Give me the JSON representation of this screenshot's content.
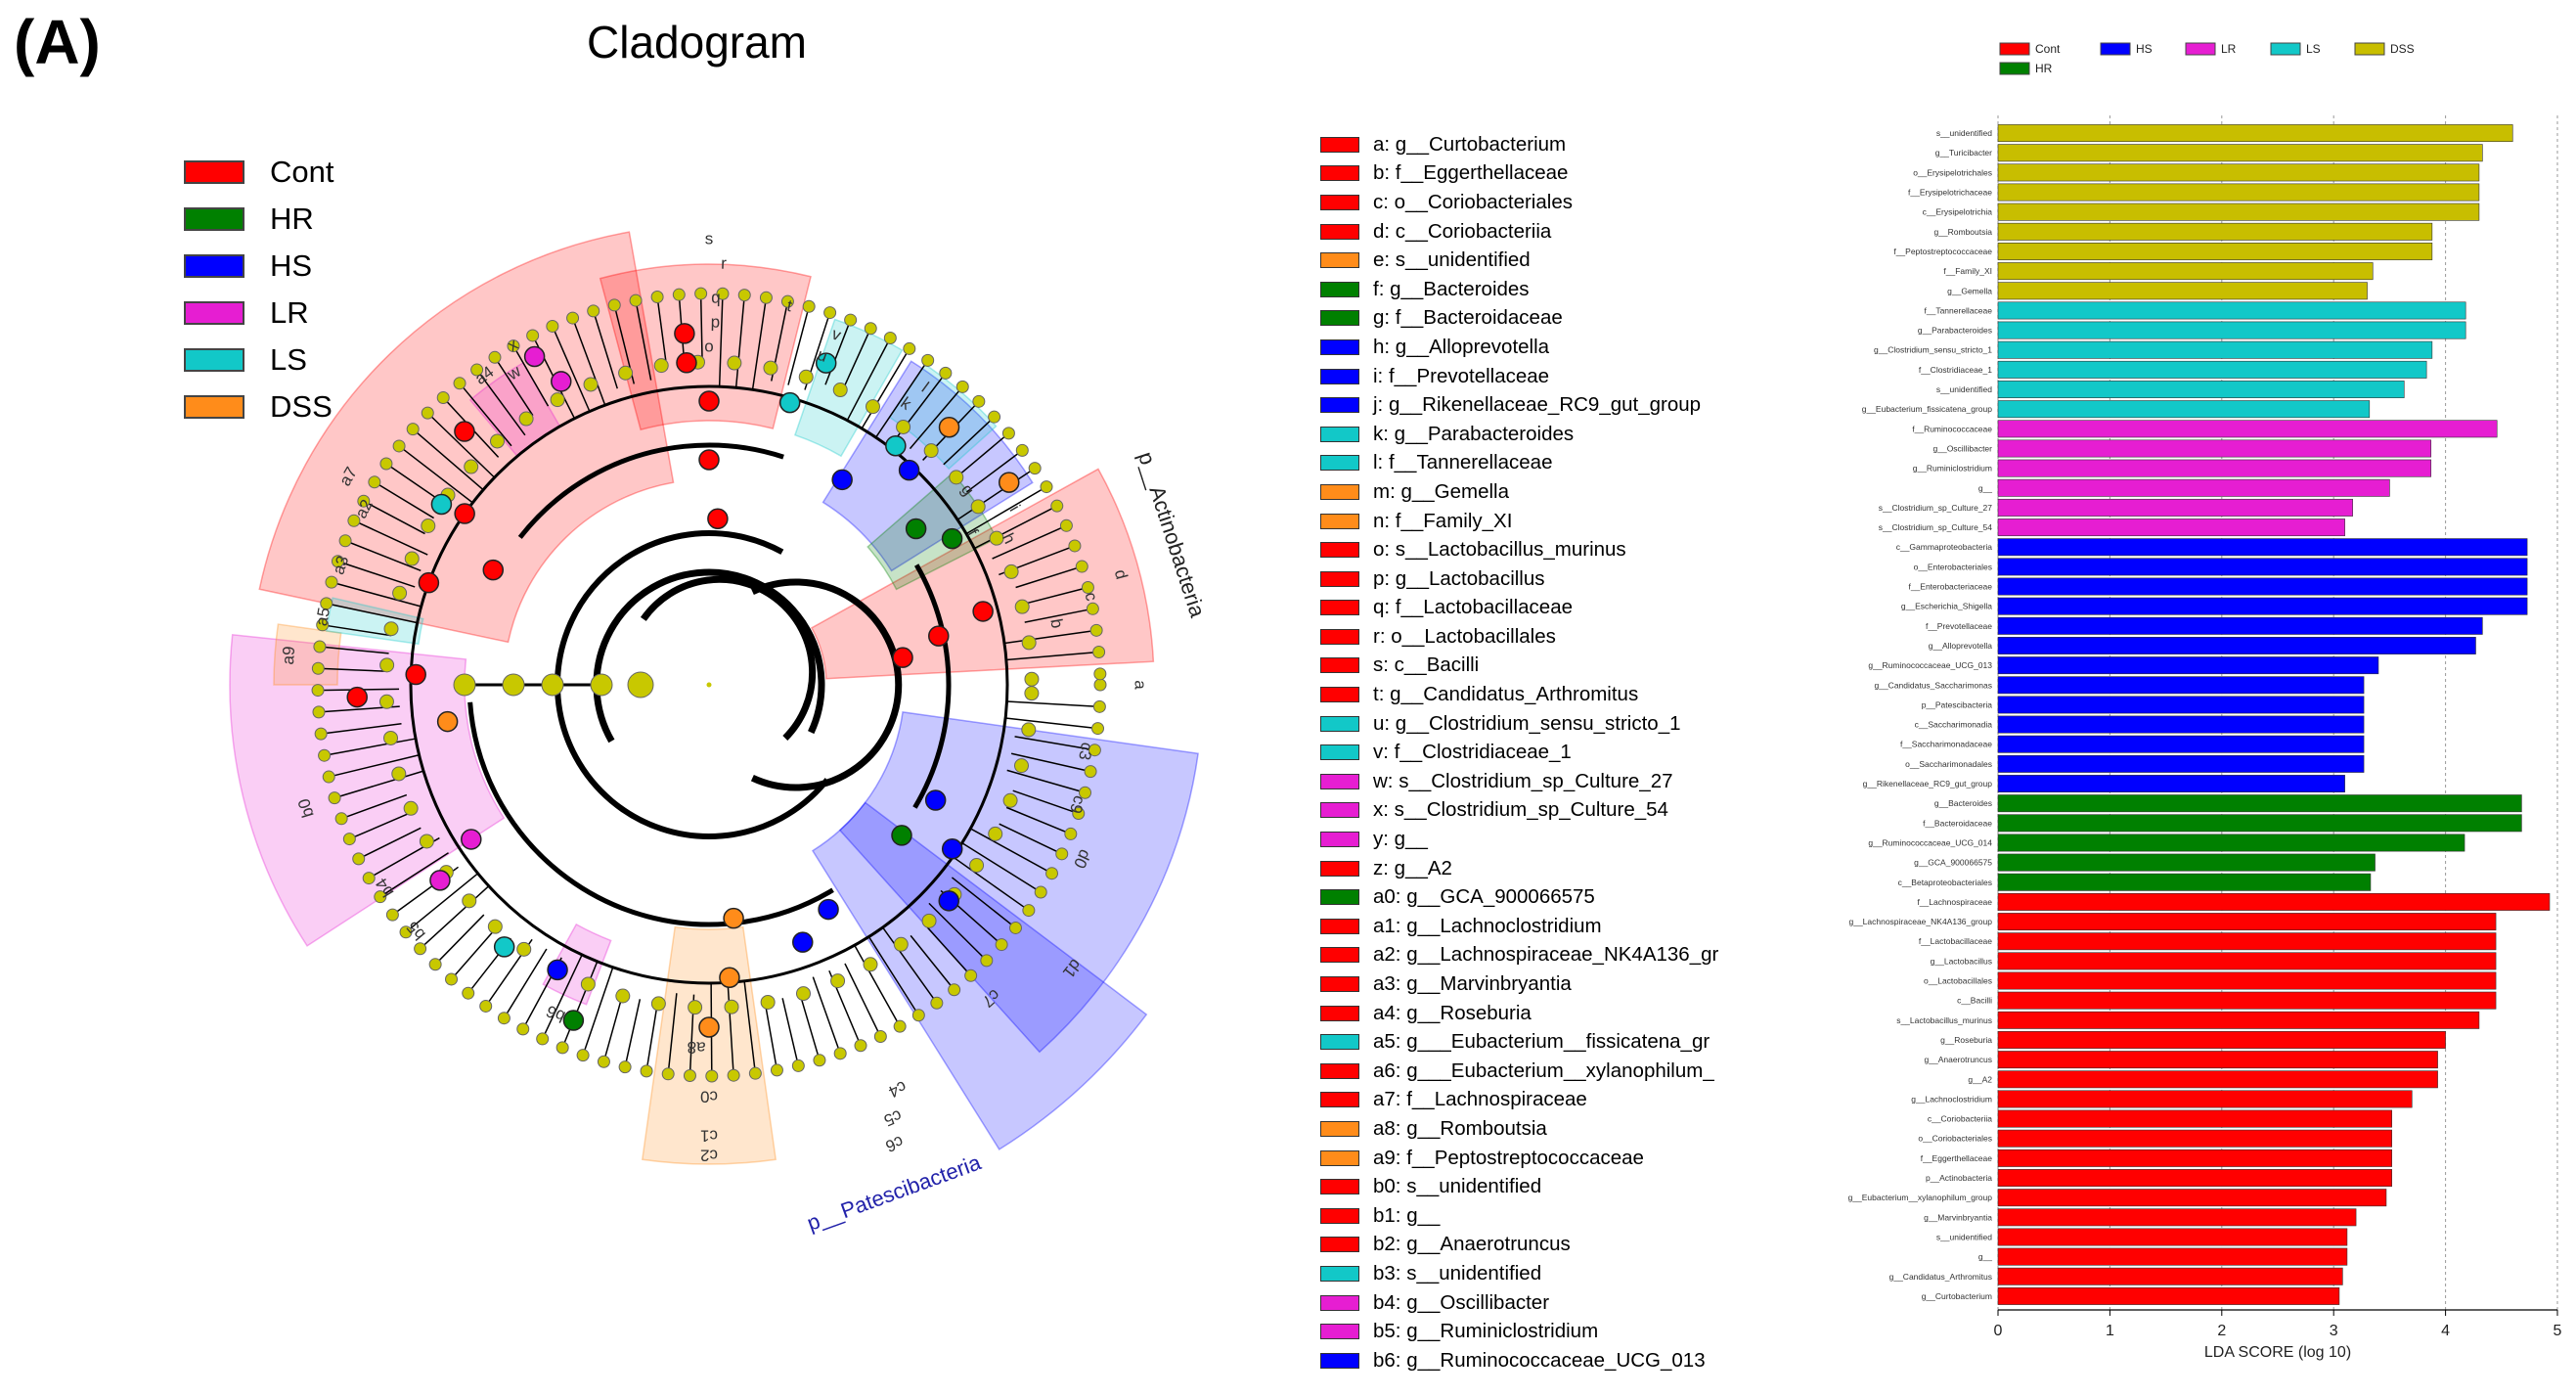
{
  "panel_label": "(A)",
  "cladogram": {
    "title": "Cladogram",
    "group_legend": [
      {
        "label": "Cont",
        "color": "#ff0000"
      },
      {
        "label": "HR",
        "color": "#008000"
      },
      {
        "label": "HS",
        "color": "#0000ff"
      },
      {
        "label": "LR",
        "color": "#e61ed2"
      },
      {
        "label": "LS",
        "color": "#12c8c8"
      },
      {
        "label": "DSS",
        "color": "#ff8c1a"
      }
    ],
    "phylum_labels": [
      "p__Actinobacteria",
      "p__Patescibacteria"
    ],
    "taxa_legend": [
      {
        "code": "a",
        "name": "a: g__Curtobacterium",
        "group": "Cont"
      },
      {
        "code": "b",
        "name": "b: f__Eggerthellaceae",
        "group": "Cont"
      },
      {
        "code": "c",
        "name": "c: o__Coriobacteriales",
        "group": "Cont"
      },
      {
        "code": "d",
        "name": "d: c__Coriobacteriia",
        "group": "Cont"
      },
      {
        "code": "e",
        "name": "e: s__unidentified",
        "group": "DSS"
      },
      {
        "code": "f",
        "name": "f: g__Bacteroides",
        "group": "HR"
      },
      {
        "code": "g",
        "name": "g: f__Bacteroidaceae",
        "group": "HR"
      },
      {
        "code": "h",
        "name": "h: g__Alloprevotella",
        "group": "HS"
      },
      {
        "code": "i",
        "name": "i: f__Prevotellaceae",
        "group": "HS"
      },
      {
        "code": "j",
        "name": "j: g__Rikenellaceae_RC9_gut_group",
        "group": "HS"
      },
      {
        "code": "k",
        "name": "k: g__Parabacteroides",
        "group": "LS"
      },
      {
        "code": "l",
        "name": "l: f__Tannerellaceae",
        "group": "LS"
      },
      {
        "code": "m",
        "name": "m: g__Gemella",
        "group": "DSS"
      },
      {
        "code": "n",
        "name": "n: f__Family_XI",
        "group": "DSS"
      },
      {
        "code": "o",
        "name": "o: s__Lactobacillus_murinus",
        "group": "Cont"
      },
      {
        "code": "p",
        "name": "p: g__Lactobacillus",
        "group": "Cont"
      },
      {
        "code": "q",
        "name": "q: f__Lactobacillaceae",
        "group": "Cont"
      },
      {
        "code": "r",
        "name": "r: o__Lactobacillales",
        "group": "Cont"
      },
      {
        "code": "s",
        "name": "s: c__Bacilli",
        "group": "Cont"
      },
      {
        "code": "t",
        "name": "t: g__Candidatus_Arthromitus",
        "group": "Cont"
      },
      {
        "code": "u",
        "name": "u: g__Clostridium_sensu_stricto_1",
        "group": "LS"
      },
      {
        "code": "v",
        "name": "v: f__Clostridiaceae_1",
        "group": "LS"
      },
      {
        "code": "w",
        "name": "w: s__Clostridium_sp_Culture_27",
        "group": "LR"
      },
      {
        "code": "x",
        "name": "x: s__Clostridium_sp_Culture_54",
        "group": "LR"
      },
      {
        "code": "y",
        "name": "y: g__",
        "group": "LR"
      },
      {
        "code": "z",
        "name": "z: g__A2",
        "group": "Cont"
      },
      {
        "code": "a0",
        "name": "a0: g__GCA_900066575",
        "group": "HR"
      },
      {
        "code": "a1",
        "name": "a1: g__Lachnoclostridium",
        "group": "Cont"
      },
      {
        "code": "a2",
        "name": "a2: g__Lachnospiraceae_NK4A136_gr",
        "group": "Cont"
      },
      {
        "code": "a3",
        "name": "a3: g__Marvinbryantia",
        "group": "Cont"
      },
      {
        "code": "a4",
        "name": "a4: g__Roseburia",
        "group": "Cont"
      },
      {
        "code": "a5",
        "name": "a5: g___Eubacterium__fissicatena_gr",
        "group": "LS"
      },
      {
        "code": "a6",
        "name": "a6: g___Eubacterium__xylanophilum_",
        "group": "Cont"
      },
      {
        "code": "a7",
        "name": "a7: f__Lachnospiraceae",
        "group": "Cont"
      },
      {
        "code": "a8",
        "name": "a8: g__Romboutsia",
        "group": "DSS"
      },
      {
        "code": "a9",
        "name": "a9: f__Peptostreptococcaceae",
        "group": "DSS"
      },
      {
        "code": "b0",
        "name": "b0: s__unidentified",
        "group": "Cont"
      },
      {
        "code": "b1",
        "name": "b1: g__",
        "group": "Cont"
      },
      {
        "code": "b2",
        "name": "b2: g__Anaerotruncus",
        "group": "Cont"
      },
      {
        "code": "b3",
        "name": "b3: s__unidentified",
        "group": "LS"
      },
      {
        "code": "b4",
        "name": "b4: g__Oscillibacter",
        "group": "LR"
      },
      {
        "code": "b5",
        "name": "b5: g__Ruminiclostridium",
        "group": "LR"
      },
      {
        "code": "b6",
        "name": "b6: g__Ruminococcaceae_UCG_013",
        "group": "HS"
      }
    ]
  },
  "chart_data": {
    "type": "bar",
    "orientation": "horizontal",
    "xlabel": "LDA SCORE (log 10)",
    "xlim": [
      0,
      5
    ],
    "xticks": [
      0,
      1,
      2,
      3,
      4,
      5
    ],
    "legend": [
      {
        "label": "Cont",
        "color": "#ff0000"
      },
      {
        "label": "HS",
        "color": "#0000ff"
      },
      {
        "label": "LR",
        "color": "#e61ed2"
      },
      {
        "label": "LS",
        "color": "#12c8c8"
      },
      {
        "label": "DSS",
        "color": "#c8be00"
      },
      {
        "label": "HR",
        "color": "#008000"
      }
    ],
    "colors": {
      "Cont": "#ff0000",
      "HR": "#008000",
      "HS": "#0000ff",
      "LR": "#e61ed2",
      "LS": "#12c8c8",
      "DSS": "#c8be00"
    },
    "bars": [
      {
        "label": "s__unidentified",
        "value": 4.6,
        "group": "DSS"
      },
      {
        "label": "g__Turicibacter",
        "value": 4.33,
        "group": "DSS"
      },
      {
        "label": "o__Erysipelotrichales",
        "value": 4.3,
        "group": "DSS"
      },
      {
        "label": "f__Erysipelotrichaceae",
        "value": 4.3,
        "group": "DSS"
      },
      {
        "label": "c__Erysipelotrichia",
        "value": 4.3,
        "group": "DSS"
      },
      {
        "label": "g__Romboutsia",
        "value": 3.88,
        "group": "DSS"
      },
      {
        "label": "f__Peptostreptococcaceae",
        "value": 3.88,
        "group": "DSS"
      },
      {
        "label": "f__Family_XI",
        "value": 3.35,
        "group": "DSS"
      },
      {
        "label": "g__Gemella",
        "value": 3.3,
        "group": "DSS"
      },
      {
        "label": "f__Tannerellaceae",
        "value": 4.18,
        "group": "LS"
      },
      {
        "label": "g__Parabacteroides",
        "value": 4.18,
        "group": "LS"
      },
      {
        "label": "g__Clostridium_sensu_stricto_1",
        "value": 3.88,
        "group": "LS"
      },
      {
        "label": "f__Clostridiaceae_1",
        "value": 3.83,
        "group": "LS"
      },
      {
        "label": "s__unidentified",
        "value": 3.63,
        "group": "LS"
      },
      {
        "label": "g__Eubacterium_fissicatena_group",
        "value": 3.32,
        "group": "LS"
      },
      {
        "label": "f__Ruminococcaceae",
        "value": 4.46,
        "group": "LR"
      },
      {
        "label": "g__Oscillibacter",
        "value": 3.87,
        "group": "LR"
      },
      {
        "label": "g__Ruminiclostridium",
        "value": 3.87,
        "group": "LR"
      },
      {
        "label": "g__",
        "value": 3.5,
        "group": "LR"
      },
      {
        "label": "s__Clostridium_sp_Culture_27",
        "value": 3.17,
        "group": "LR"
      },
      {
        "label": "s__Clostridium_sp_Culture_54",
        "value": 3.1,
        "group": "LR"
      },
      {
        "label": "c__Gammaproteobacteria",
        "value": 4.73,
        "group": "HS"
      },
      {
        "label": "o__Enterobacteriales",
        "value": 4.73,
        "group": "HS"
      },
      {
        "label": "f__Enterobacteriaceae",
        "value": 4.73,
        "group": "HS"
      },
      {
        "label": "g__Escherichia_Shigella",
        "value": 4.73,
        "group": "HS"
      },
      {
        "label": "f__Prevotellaceae",
        "value": 4.33,
        "group": "HS"
      },
      {
        "label": "g__Alloprevotella",
        "value": 4.27,
        "group": "HS"
      },
      {
        "label": "g__Ruminococcaceae_UCG_013",
        "value": 3.4,
        "group": "HS"
      },
      {
        "label": "g__Candidatus_Saccharimonas",
        "value": 3.27,
        "group": "HS"
      },
      {
        "label": "p__Patescibacteria",
        "value": 3.27,
        "group": "HS"
      },
      {
        "label": "c__Saccharimonadia",
        "value": 3.27,
        "group": "HS"
      },
      {
        "label": "f__Saccharimonadaceae",
        "value": 3.27,
        "group": "HS"
      },
      {
        "label": "o__Saccharimonadales",
        "value": 3.27,
        "group": "HS"
      },
      {
        "label": "g__Rikenellaceae_RC9_gut_group",
        "value": 3.1,
        "group": "HS"
      },
      {
        "label": "g__Bacteroides",
        "value": 4.68,
        "group": "HR"
      },
      {
        "label": "f__Bacteroidaceae",
        "value": 4.68,
        "group": "HR"
      },
      {
        "label": "g__Ruminococcaceae_UCG_014",
        "value": 4.17,
        "group": "HR"
      },
      {
        "label": "g__GCA_900066575",
        "value": 3.37,
        "group": "HR"
      },
      {
        "label": "c__Betaproteobacteriales",
        "value": 3.33,
        "group": "HR"
      },
      {
        "label": "f__Lachnospiraceae",
        "value": 4.93,
        "group": "Cont"
      },
      {
        "label": "g__Lachnospiraceae_NK4A136_group",
        "value": 4.45,
        "group": "Cont"
      },
      {
        "label": "f__Lactobacillaceae",
        "value": 4.45,
        "group": "Cont"
      },
      {
        "label": "g__Lactobacillus",
        "value": 4.45,
        "group": "Cont"
      },
      {
        "label": "o__Lactobacillales",
        "value": 4.45,
        "group": "Cont"
      },
      {
        "label": "c__Bacilli",
        "value": 4.45,
        "group": "Cont"
      },
      {
        "label": "s__Lactobacillus_murinus",
        "value": 4.3,
        "group": "Cont"
      },
      {
        "label": "g__Roseburia",
        "value": 4.0,
        "group": "Cont"
      },
      {
        "label": "g__Anaerotruncus",
        "value": 3.93,
        "group": "Cont"
      },
      {
        "label": "g__A2",
        "value": 3.93,
        "group": "Cont"
      },
      {
        "label": "g__Lachnoclostridium",
        "value": 3.7,
        "group": "Cont"
      },
      {
        "label": "c__Coriobacteriia",
        "value": 3.52,
        "group": "Cont"
      },
      {
        "label": "o__Coriobacteriales",
        "value": 3.52,
        "group": "Cont"
      },
      {
        "label": "f__Eggerthellaceae",
        "value": 3.52,
        "group": "Cont"
      },
      {
        "label": "p__Actinobacteria",
        "value": 3.52,
        "group": "Cont"
      },
      {
        "label": "g__Eubacterium__xylanophilum_group",
        "value": 3.47,
        "group": "Cont"
      },
      {
        "label": "g__Marvinbryantia",
        "value": 3.2,
        "group": "Cont"
      },
      {
        "label": "s__unidentified",
        "value": 3.12,
        "group": "Cont"
      },
      {
        "label": "g__",
        "value": 3.12,
        "group": "Cont"
      },
      {
        "label": "g__Candidatus_Arthromitus",
        "value": 3.08,
        "group": "Cont"
      },
      {
        "label": "g__Curtobacterium",
        "value": 3.05,
        "group": "Cont"
      }
    ]
  }
}
